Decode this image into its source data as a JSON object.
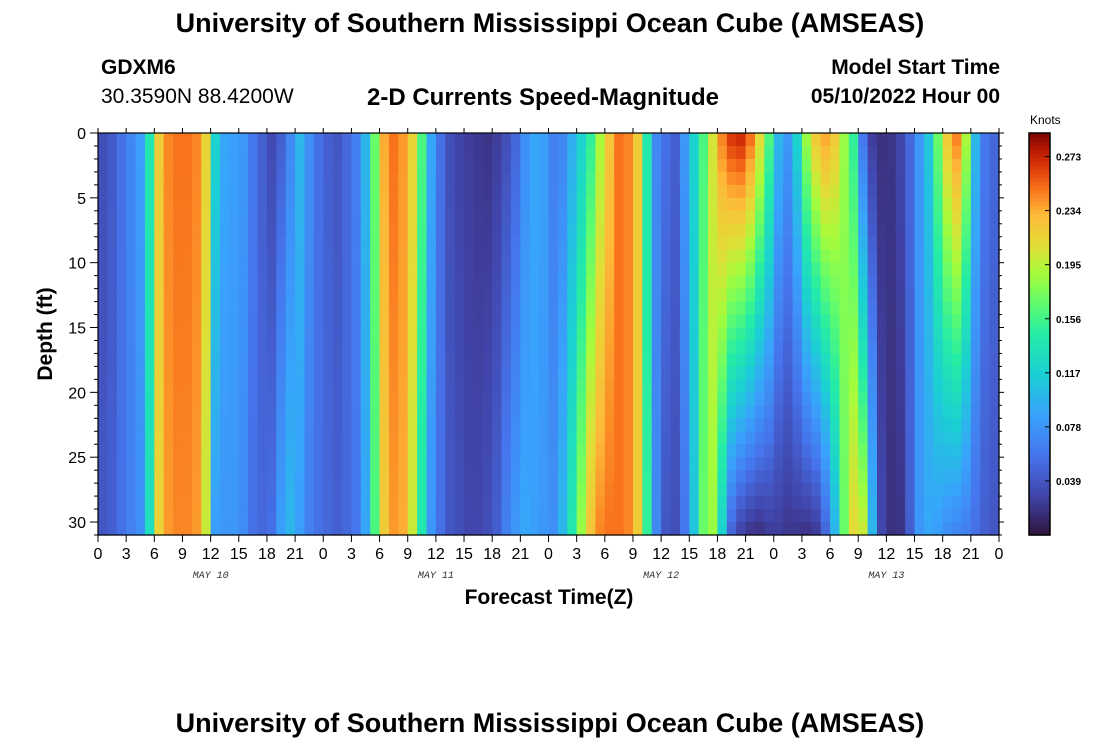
{
  "header": {
    "title": "University of Southern Mississippi Ocean Cube (AMSEAS)",
    "station_id": "GDXM6",
    "station_coords": "30.3590N  88.4200W",
    "chart_title": "2-D Currents Speed-Magnitude",
    "model_start_label": "Model Start Time",
    "model_start_value": "05/10/2022 Hour 00"
  },
  "footer": {
    "title": "University of Southern Mississippi Ocean Cube (AMSEAS)"
  },
  "chart_data": {
    "type": "heatmap",
    "title": "2-D Currents Speed-Magnitude",
    "xlabel": "Forecast Time(Z)",
    "ylabel": "Depth (ft)",
    "colorbar_label": "Knots",
    "colorbar_ticks": [
      "0.039",
      "0.078",
      "0.117",
      "0.156",
      "0.195",
      "0.234",
      "0.273"
    ],
    "colorbar_tick_values": [
      0.039,
      0.078,
      0.117,
      0.156,
      0.195,
      0.234,
      0.273
    ],
    "value_range": [
      0.0,
      0.29
    ],
    "x_hours_range": [
      0,
      96
    ],
    "x_tick_hours": [
      0,
      3,
      6,
      9,
      12,
      15,
      18,
      21,
      24,
      27,
      30,
      33,
      36,
      39,
      42,
      45,
      48,
      51,
      54,
      57,
      60,
      63,
      66,
      69,
      72,
      75,
      78,
      81,
      84,
      87,
      90,
      93,
      96
    ],
    "x_tick_labels": [
      "0",
      "3",
      "6",
      "9",
      "12",
      "15",
      "18",
      "21",
      "0",
      "3",
      "6",
      "9",
      "12",
      "15",
      "18",
      "21",
      "0",
      "3",
      "6",
      "9",
      "12",
      "15",
      "18",
      "21",
      "0",
      "3",
      "6",
      "9",
      "12",
      "15",
      "18",
      "21",
      "0"
    ],
    "day_labels": [
      {
        "hour": 12,
        "text": "MAY 10"
      },
      {
        "hour": 36,
        "text": "MAY 11"
      },
      {
        "hour": 60,
        "text": "MAY 12"
      },
      {
        "hour": 84,
        "text": "MAY 13"
      }
    ],
    "y_range_ft": [
      0,
      31
    ],
    "y_tick_values": [
      0,
      5,
      10,
      15,
      20,
      25,
      30
    ],
    "y_tick_labels": [
      "0",
      "5",
      "10",
      "15",
      "20",
      "25",
      "30"
    ],
    "speed_profile_by_hour": {
      "hours": [
        0,
        1,
        2,
        3,
        4,
        5,
        6,
        7,
        8,
        9,
        10,
        11,
        12,
        13,
        14,
        15,
        16,
        17,
        18,
        19,
        20,
        21,
        22,
        23,
        24,
        25,
        26,
        27,
        28,
        29,
        30,
        31,
        32,
        33,
        34,
        35,
        36,
        37,
        38,
        39,
        40,
        41,
        42,
        43,
        44,
        45,
        46,
        47,
        48,
        49,
        50,
        51,
        52,
        53,
        54,
        55,
        56,
        57,
        58,
        59,
        60,
        61,
        62,
        63,
        64,
        65,
        66,
        67,
        68,
        69,
        70,
        71,
        72,
        73,
        74,
        75,
        76,
        77,
        78,
        79,
        80,
        81,
        82,
        83,
        84,
        85,
        86,
        87,
        88,
        89,
        90,
        91,
        92,
        93,
        94,
        95,
        96
      ],
      "surface": [
        0.035,
        0.042,
        0.056,
        0.07,
        0.085,
        0.14,
        0.22,
        0.245,
        0.25,
        0.25,
        0.245,
        0.215,
        0.12,
        0.09,
        0.085,
        0.08,
        0.06,
        0.045,
        0.032,
        0.045,
        0.07,
        0.1,
        0.075,
        0.055,
        0.045,
        0.04,
        0.05,
        0.065,
        0.1,
        0.17,
        0.235,
        0.25,
        0.24,
        0.215,
        0.16,
        0.09,
        0.055,
        0.035,
        0.028,
        0.025,
        0.022,
        0.02,
        0.025,
        0.035,
        0.05,
        0.075,
        0.09,
        0.085,
        0.065,
        0.07,
        0.095,
        0.12,
        0.15,
        0.19,
        0.225,
        0.25,
        0.245,
        0.22,
        0.14,
        0.07,
        0.055,
        0.045,
        0.08,
        0.12,
        0.16,
        0.205,
        0.245,
        0.265,
        0.27,
        0.25,
        0.21,
        0.16,
        0.1,
        0.08,
        0.12,
        0.185,
        0.22,
        0.235,
        0.22,
        0.185,
        0.15,
        0.06,
        0.025,
        0.018,
        0.02,
        0.03,
        0.05,
        0.08,
        0.11,
        0.17,
        0.22,
        0.245,
        0.19,
        0.1,
        0.06,
        0.05,
        0.05
      ],
      "bottom": [
        0.04,
        0.045,
        0.055,
        0.065,
        0.075,
        0.13,
        0.215,
        0.24,
        0.245,
        0.245,
        0.24,
        0.2,
        0.085,
        0.08,
        0.08,
        0.072,
        0.055,
        0.05,
        0.055,
        0.085,
        0.1,
        0.085,
        0.065,
        0.055,
        0.05,
        0.045,
        0.05,
        0.06,
        0.09,
        0.16,
        0.22,
        0.24,
        0.235,
        0.2,
        0.14,
        0.08,
        0.055,
        0.04,
        0.035,
        0.03,
        0.03,
        0.035,
        0.045,
        0.065,
        0.08,
        0.09,
        0.085,
        0.08,
        0.075,
        0.1,
        0.14,
        0.185,
        0.225,
        0.245,
        0.25,
        0.25,
        0.245,
        0.22,
        0.15,
        0.07,
        0.04,
        0.035,
        0.06,
        0.11,
        0.17,
        0.185,
        0.12,
        0.05,
        0.03,
        0.022,
        0.02,
        0.025,
        0.025,
        0.022,
        0.022,
        0.02,
        0.025,
        0.05,
        0.1,
        0.17,
        0.21,
        0.2,
        0.1,
        0.03,
        0.018,
        0.02,
        0.045,
        0.08,
        0.09,
        0.085,
        0.075,
        0.07,
        0.065,
        0.055,
        0.045,
        0.04,
        0.04
      ]
    }
  }
}
